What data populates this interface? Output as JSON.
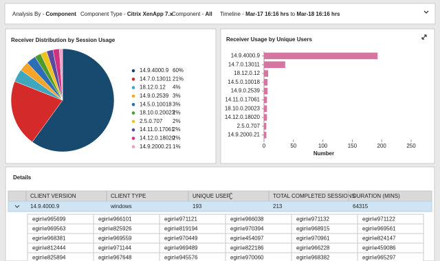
{
  "filters": [
    {
      "label": "Analysis By -",
      "value": "Component"
    },
    {
      "label": "Component Type -",
      "value": "Citrix XenApp 7.x"
    },
    {
      "label": "Component -",
      "value": "All"
    },
    {
      "label": "Timeline -",
      "value": "Mar-17 16:16 hrs",
      "joiner": "to",
      "value2": "Mar-18 16:16 hrs"
    }
  ],
  "chart_data": [
    {
      "type": "pie",
      "title": "Receiver Distribution by Session Usage",
      "categories": [
        "14.9.4000.9",
        "14.7.0.13011",
        "18.12.0.12",
        "14.9.0.2539",
        "14.5.0.10018",
        "18.10.0.20023",
        "2.5.0.707",
        "14.11.0.17061",
        "14.12.0.18020",
        "14.9.2000.21"
      ],
      "values": [
        60,
        21,
        4,
        3,
        3,
        2,
        2,
        2,
        2,
        1
      ],
      "value_labels": [
        "60%",
        "21%",
        "4%",
        "3%",
        "3%",
        "2%",
        "2%",
        "2%",
        "2%",
        "1%"
      ],
      "colors": [
        "#174a6e",
        "#d42a2a",
        "#3ea6bd",
        "#f5a62a",
        "#2c6db3",
        "#4f9a2c",
        "#f1c21b",
        "#5a4b9c",
        "#d0337f",
        "#e7a3c3"
      ]
    },
    {
      "type": "bar",
      "orientation": "horizontal",
      "title": "Receiver Usage by Unique Users",
      "categories": [
        "14.9.4000.9",
        "14.7.0.13011",
        "18.12.0.12",
        "14.5.0.10018",
        "14.9.0.2539",
        "14.11.0.17061",
        "18.10.0.20023",
        "14.12.0.18020",
        "2.5.0.707",
        "14.9.2000.21"
      ],
      "values": [
        193,
        36,
        7,
        6,
        6,
        5,
        5,
        5,
        4,
        4
      ],
      "color": "#d6759f",
      "xlim": [
        0,
        250
      ],
      "xticks": [
        0,
        50,
        100,
        150,
        200,
        250
      ],
      "xlabel": "Number"
    }
  ],
  "details": {
    "title": "Details",
    "columns": [
      "CLIENT VERSION",
      "CLIENT TYPE",
      "UNIQUE USER",
      "TOTAL COMPLETED SESSIONS",
      "DURATION (MINS)"
    ],
    "rows": [
      [
        "14.9.4000.9",
        "windows",
        193,
        213,
        64315
      ]
    ],
    "users": [
      [
        "egin\\e965699",
        "egin\\e966101",
        "egin\\e971121",
        "egin\\e966038",
        "egin\\e971132",
        "egin\\e971122"
      ],
      [
        "egin\\e969563",
        "egin\\e825926",
        "egin\\e819194",
        "egin\\e970394",
        "egin\\e968915",
        "egin\\e969561"
      ],
      [
        "egin\\e968381",
        "egin\\e969559",
        "egin\\e970449",
        "egin\\e454097",
        "egin\\e970961",
        "egin\\e824147"
      ],
      [
        "egin\\e812444",
        "egin\\e971144",
        "egin\\e969489",
        "egin\\e822186",
        "egin\\e966228",
        "egin\\e459086"
      ],
      [
        "egin\\e825894",
        "egin\\e967648",
        "egin\\e945576",
        "egin\\e970060",
        "egin\\e968382",
        "egin\\e965297"
      ]
    ]
  }
}
